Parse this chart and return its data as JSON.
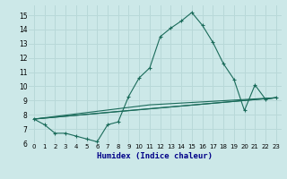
{
  "xlabel": "Humidex (Indice chaleur)",
  "bg_color": "#cce8e8",
  "grid_color": "#b8d8d8",
  "line_color": "#1a6b5a",
  "xlim": [
    -0.5,
    23.5
  ],
  "ylim": [
    6.0,
    15.7
  ],
  "xticks": [
    0,
    1,
    2,
    3,
    4,
    5,
    6,
    7,
    8,
    9,
    10,
    11,
    12,
    13,
    14,
    15,
    16,
    17,
    18,
    19,
    20,
    21,
    22,
    23
  ],
  "yticks": [
    6,
    7,
    8,
    9,
    10,
    11,
    12,
    13,
    14,
    15
  ],
  "line1_x": [
    0,
    1,
    2,
    3,
    4,
    5,
    6,
    7,
    8,
    9,
    10,
    11,
    12,
    13,
    14,
    15,
    16,
    17,
    18,
    19,
    20,
    21,
    22,
    23
  ],
  "line1_y": [
    7.7,
    7.3,
    6.7,
    6.7,
    6.5,
    6.3,
    6.1,
    7.3,
    7.5,
    9.3,
    10.6,
    11.3,
    13.5,
    14.1,
    14.6,
    15.2,
    14.3,
    13.1,
    11.6,
    10.5,
    8.3,
    10.1,
    9.1,
    9.2
  ],
  "line2_x": [
    0,
    23
  ],
  "line2_y": [
    7.7,
    9.2
  ],
  "line3_x": [
    0,
    9,
    23
  ],
  "line3_y": [
    7.7,
    8.3,
    9.2
  ],
  "line4_x": [
    0,
    11,
    23
  ],
  "line4_y": [
    7.7,
    8.7,
    9.2
  ]
}
